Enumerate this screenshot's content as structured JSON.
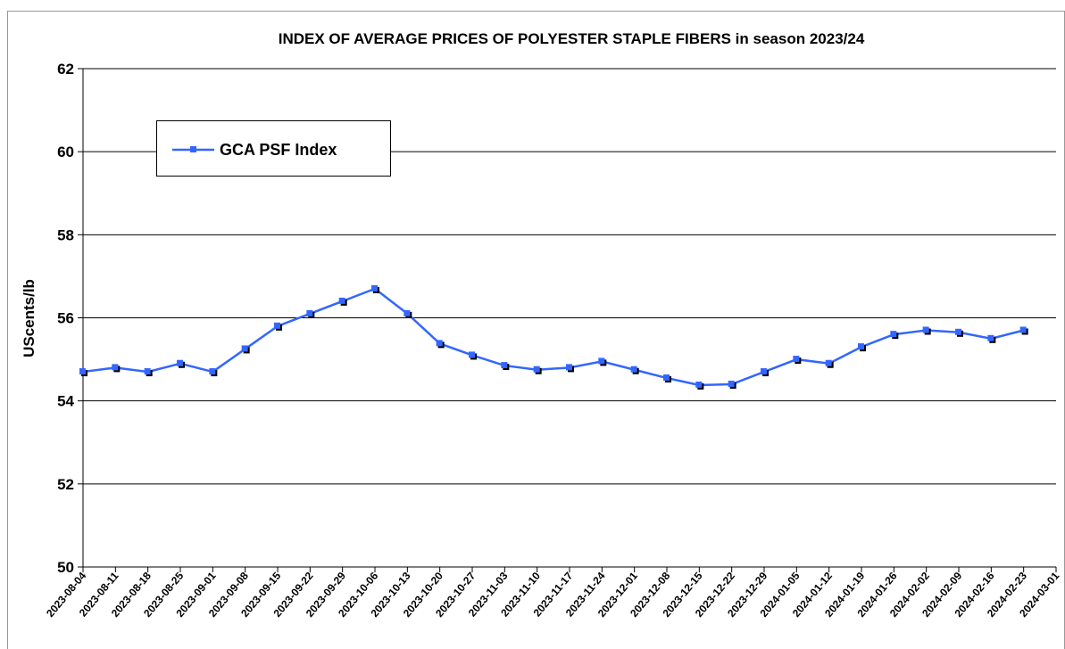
{
  "chart_data": {
    "type": "line",
    "title": "INDEX OF AVERAGE PRICES OF POLYESTER STAPLE FIBERS in season 2023/24",
    "y_label": "UScents/lb",
    "categories": [
      "2023-08-04",
      "2023-08-11",
      "2023-08-18",
      "2023-08-25",
      "2023-09-01",
      "2023-09-08",
      "2023-09-15",
      "2023-09-22",
      "2023-09-29",
      "2023-10-06",
      "2023-10-13",
      "2023-10-20",
      "2023-10-27",
      "2023-11-03",
      "2023-11-10",
      "2023-11-17",
      "2023-11-24",
      "2023-12-01",
      "2023-12-08",
      "2023-12-15",
      "2023-12-22",
      "2023-12-29",
      "2024-01-05",
      "2024-01-12",
      "2024-01-19",
      "2024-01-26",
      "2024-02-02",
      "2024-02-09",
      "2024-02-16",
      "2024-02-23",
      "2024-03-01"
    ],
    "series": [
      {
        "name": "GCA PSF Index",
        "color": "#3366ff",
        "values": [
          54.7,
          54.8,
          54.7,
          54.9,
          54.7,
          55.25,
          55.8,
          56.1,
          56.4,
          56.7,
          56.1,
          55.38,
          55.1,
          54.85,
          54.75,
          54.8,
          54.95,
          54.75,
          54.55,
          54.38,
          54.4,
          54.7,
          55.0,
          54.9,
          55.3,
          55.6,
          55.7,
          55.65,
          55.5,
          55.7,
          null
        ]
      }
    ],
    "ylim": [
      50,
      62
    ],
    "yticks": [
      50,
      52,
      54,
      56,
      58,
      60,
      62
    ],
    "grid": true,
    "legend": "top-left"
  }
}
